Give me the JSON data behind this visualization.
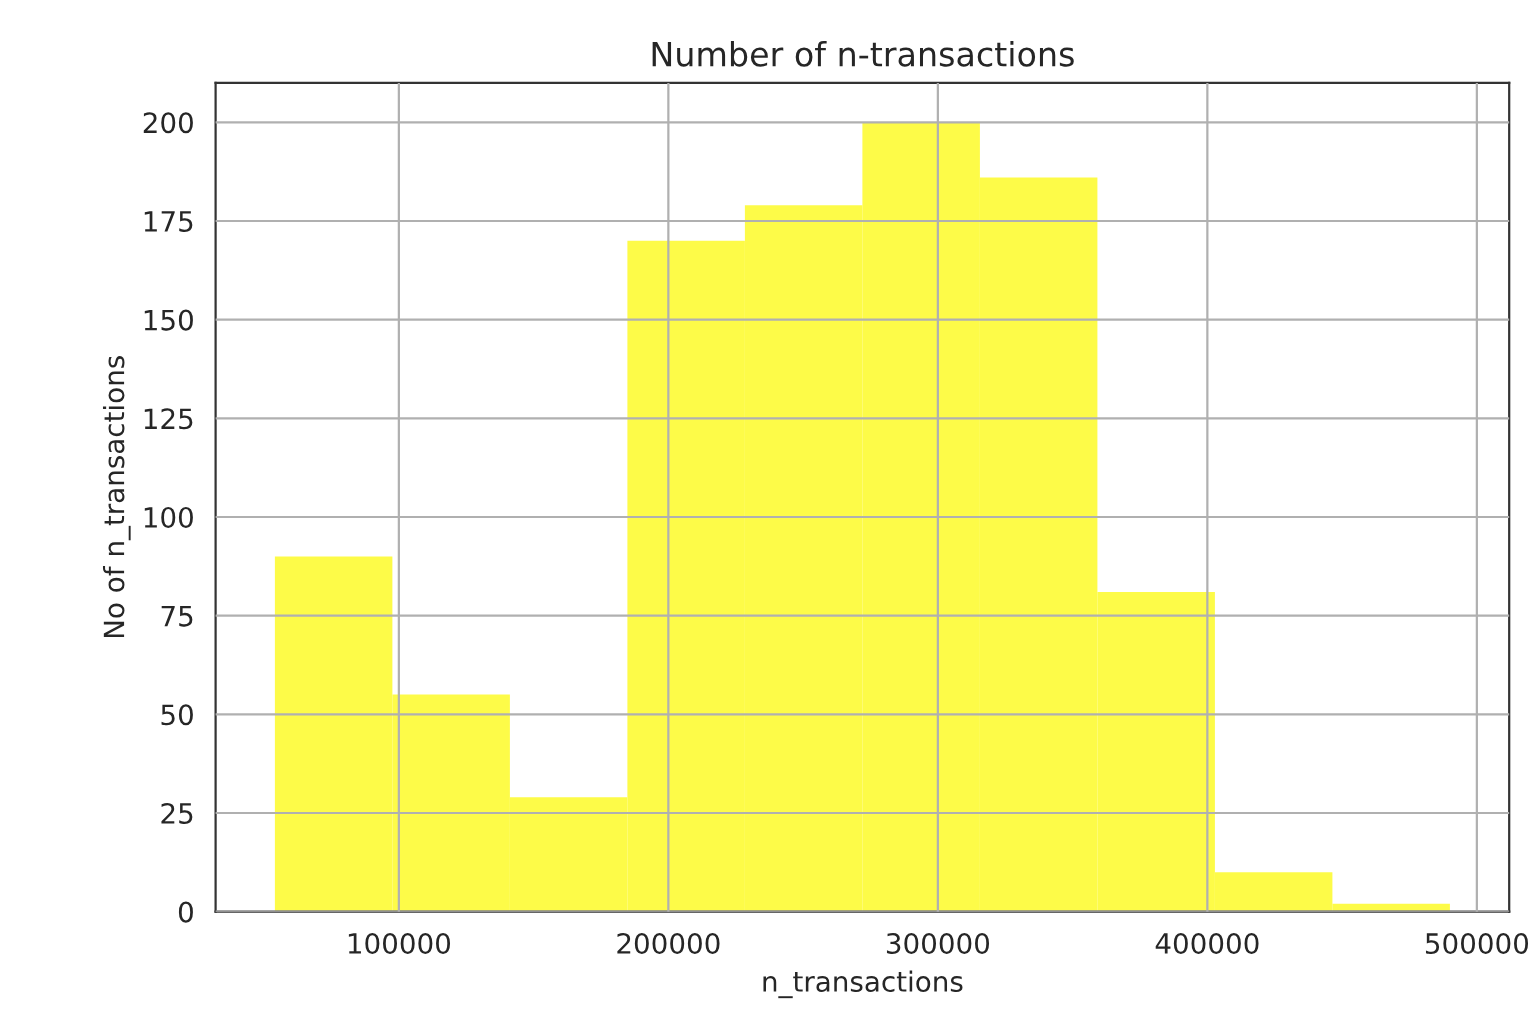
{
  "chart_data": {
    "type": "histogram",
    "title": "Number of n-transactions",
    "xlabel": "n_transactions",
    "ylabel": "No of n_transactions",
    "bins": [
      54000,
      97600,
      141200,
      184800,
      228400,
      272000,
      315600,
      359200,
      402800,
      446400,
      490000
    ],
    "values": [
      90,
      55,
      29,
      170,
      179,
      200,
      186,
      81,
      10,
      2
    ],
    "color": "#fdfb48",
    "xlim": [
      32000,
      512000
    ],
    "xticks": [
      100000,
      200000,
      300000,
      400000,
      500000
    ],
    "ylim": [
      0,
      210
    ],
    "yticks": [
      0,
      25,
      50,
      75,
      100,
      125,
      150,
      175,
      200
    ],
    "grid": true
  }
}
